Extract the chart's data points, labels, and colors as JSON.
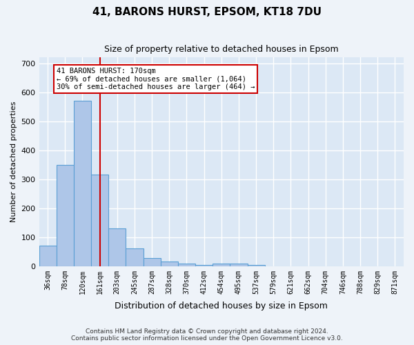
{
  "title": "41, BARONS HURST, EPSOM, KT18 7DU",
  "subtitle": "Size of property relative to detached houses in Epsom",
  "xlabel": "Distribution of detached houses by size in Epsom",
  "ylabel": "Number of detached properties",
  "bin_labels": [
    "36sqm",
    "78sqm",
    "120sqm",
    "161sqm",
    "203sqm",
    "245sqm",
    "287sqm",
    "328sqm",
    "370sqm",
    "412sqm",
    "454sqm",
    "495sqm",
    "537sqm",
    "579sqm",
    "621sqm",
    "662sqm",
    "704sqm",
    "746sqm",
    "788sqm",
    "829sqm",
    "871sqm"
  ],
  "bar_values": [
    70,
    350,
    570,
    315,
    130,
    62,
    27,
    17,
    10,
    5,
    10,
    10,
    5,
    0,
    0,
    0,
    0,
    0,
    0,
    0,
    0
  ],
  "bar_color": "#aec6e8",
  "bar_edge_color": "#5a9fd4",
  "vline_x": 3,
  "vline_color": "#cc0000",
  "annotation_text": "41 BARONS HURST: 170sqm\n← 69% of detached houses are smaller (1,064)\n30% of semi-detached houses are larger (464) →",
  "annotation_box_color": "#ffffff",
  "annotation_box_edge_color": "#cc0000",
  "ylim": [
    0,
    720
  ],
  "yticks": [
    0,
    100,
    200,
    300,
    400,
    500,
    600,
    700
  ],
  "footer": "Contains HM Land Registry data © Crown copyright and database right 2024.\nContains public sector information licensed under the Open Government Licence v3.0.",
  "bg_color": "#eef3f9",
  "plot_bg_color": "#dce8f5"
}
